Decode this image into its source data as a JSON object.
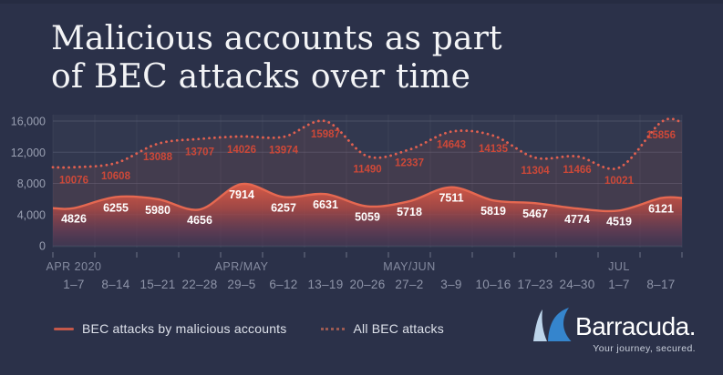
{
  "page": {
    "background": "#2b3149"
  },
  "title": {
    "lines": [
      "Malicious accounts as part",
      "of BEC attacks over time"
    ]
  },
  "legend": {
    "items": [
      {
        "label": "BEC attacks by malicious accounts",
        "swatch": "solid",
        "color": "#c4584a"
      },
      {
        "label": "All BEC attacks",
        "swatch": "dotted",
        "color": "#9c5a52"
      }
    ]
  },
  "logo": {
    "brand": "Barracuda.",
    "tagline": "Your journey, secured.",
    "fin_light_color": "#bcd4ea",
    "fin_blue_color": "#3585cd"
  },
  "chart_data": {
    "type": "area",
    "title": "Malicious accounts as part of BEC attacks over time",
    "categories": [
      "1–7",
      "8–14",
      "15–21",
      "22–28",
      "29–5",
      "6–12",
      "13–19",
      "20–26",
      "27–2",
      "3–9",
      "10–16",
      "17–23",
      "24–30",
      "1–7",
      "8–17"
    ],
    "x_groups": [
      {
        "label": "APR 2020",
        "index": 0
      },
      {
        "label": "APR/MAY",
        "index": 4
      },
      {
        "label": "MAY/JUN",
        "index": 8
      },
      {
        "label": "JUL",
        "index": 13
      }
    ],
    "series": [
      {
        "name": "BEC attacks by malicious accounts",
        "style": "solid-area",
        "line_color": "#e56851",
        "label_color": "#ffffff",
        "values": [
          4826,
          6255,
          5980,
          4656,
          7914,
          6257,
          6631,
          5059,
          5718,
          7511,
          5819,
          5467,
          4774,
          4519,
          6121
        ]
      },
      {
        "name": "All BEC attacks",
        "style": "dotted",
        "line_color": "#e06050",
        "label_color": "#cd4838",
        "values": [
          10076,
          10608,
          13088,
          13707,
          14026,
          13974,
          15987,
          11490,
          12337,
          14643,
          14135,
          11304,
          11466,
          10021,
          15856
        ]
      }
    ],
    "ylim": [
      0,
      16000
    ],
    "y_ticks": [
      0,
      4000,
      8000,
      12000,
      16000
    ],
    "y_tick_labels": [
      "0",
      "4,000",
      "8,000",
      "12,000",
      "16,000"
    ],
    "grid": true,
    "legend_position": "bottom-left"
  }
}
